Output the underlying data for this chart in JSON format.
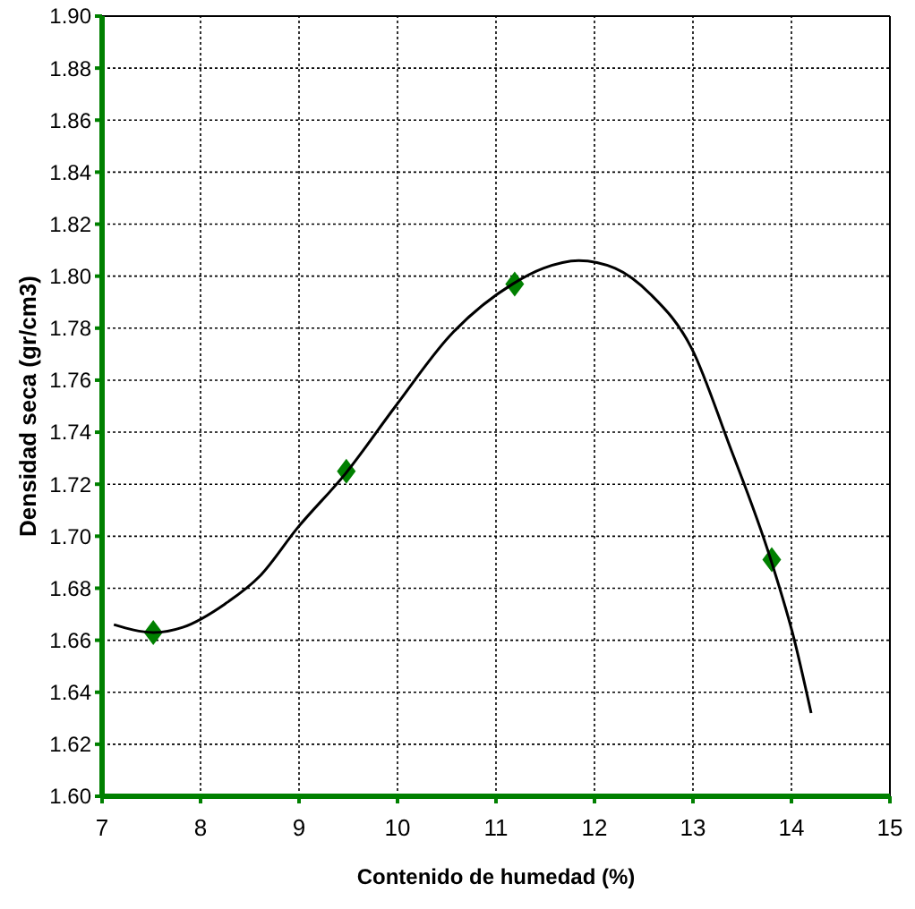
{
  "chart_data": {
    "type": "scatter",
    "xlabel": "Contenido de humedad (%)",
    "ylabel": "Densidad seca (gr/cm3)",
    "xlim": [
      7,
      15
    ],
    "xticks": [
      7,
      8,
      9,
      10,
      11,
      12,
      13,
      14,
      15
    ],
    "ylim": [
      1.6,
      1.9
    ],
    "yticks": [
      {
        "value": 1.6,
        "label": "1.60"
      },
      {
        "value": 1.62,
        "label": "1.62"
      },
      {
        "value": 1.64,
        "label": "1.64"
      },
      {
        "value": 1.66,
        "label": "1.66"
      },
      {
        "value": 1.68,
        "label": "1.68"
      },
      {
        "value": 1.7,
        "label": "1.70"
      },
      {
        "value": 1.72,
        "label": "1.72"
      },
      {
        "value": 1.74,
        "label": "1.74"
      },
      {
        "value": 1.76,
        "label": "1.76"
      },
      {
        "value": 1.78,
        "label": "1.78"
      },
      {
        "value": 1.8,
        "label": "1.80"
      },
      {
        "value": 1.82,
        "label": "1.82"
      },
      {
        "value": 1.84,
        "label": "1.84"
      },
      {
        "value": 1.86,
        "label": "1.86"
      },
      {
        "value": 1.88,
        "label": "1.88"
      },
      {
        "value": 1.9,
        "label": "1.90"
      }
    ],
    "grid": true,
    "series": [
      {
        "color": "#008000",
        "marker": "diamond",
        "x": [
          7.52,
          9.48,
          11.19,
          13.8
        ],
        "values": [
          1.663,
          1.725,
          1.797,
          1.691
        ]
      },
      {
        "type": "line",
        "color": "#000000",
        "marker": "none",
        "line_style": "solid",
        "x": [
          7.12,
          7.52,
          7.82,
          8.25,
          8.61,
          8.98,
          9.47,
          9.98,
          10.53,
          11.17,
          11.48,
          11.84,
          12.21,
          12.57,
          12.99,
          13.36,
          13.79,
          14.03,
          14.2
        ],
        "values": [
          1.666,
          1.663,
          1.665,
          1.674,
          1.685,
          1.703,
          1.724,
          1.75,
          1.777,
          1.797,
          1.803,
          1.806,
          1.803,
          1.793,
          1.772,
          1.736,
          1.691,
          1.66,
          1.632
        ]
      }
    ]
  }
}
